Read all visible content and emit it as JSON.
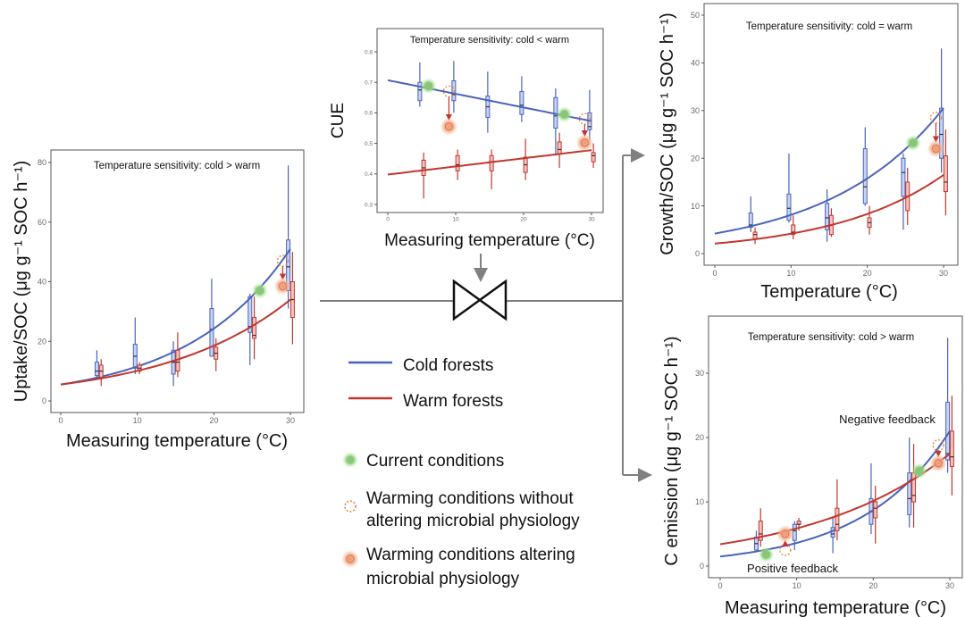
{
  "colors": {
    "cold": "#4a63b8",
    "warm": "#c0372f",
    "cold_box": "#c9d3f2",
    "warm_box": "#f2c4c0",
    "current": "#7cc96a",
    "warming": "#ee9a6e",
    "dashed": "#e0813e",
    "connector": "#808080"
  },
  "legend": {
    "cold": "Cold forests",
    "warm": "Warm forests",
    "current": "Current conditions",
    "no_physiology": [
      "Warming conditions without",
      "altering microbial physiology"
    ],
    "physiology": [
      "Warming conditions altering",
      "microbial physiology"
    ]
  },
  "chart_data": [
    {
      "id": "uptake",
      "type": "box+line",
      "title": "Temperature sensitivity: cold > warm",
      "xlabel": "Measuring temperature (°C)",
      "ylabel": "Uptake/SOC (μg g⁻¹ SOC h⁻¹)",
      "xticks": [
        0,
        10,
        20,
        30
      ],
      "yticks": [
        0,
        20,
        40,
        60,
        80
      ],
      "series": [
        {
          "name": "Cold forests",
          "fit": {
            "model": "exponential",
            "at_0": 5.5,
            "at_30": 51
          },
          "boxes": {
            "x": [
              5,
              10,
              15,
              20,
              25,
              30
            ],
            "stats": [
              [
                8,
                8.5,
                10,
                13,
                17
              ],
              [
                9,
                11,
                15,
                19,
                28
              ],
              [
                5,
                9,
                13,
                17,
                20
              ],
              [
                15,
                15,
                24,
                31,
                41
              ],
              [
                12,
                23,
                25,
                35,
                36
              ],
              [
                31,
                37,
                45,
                54,
                79
              ]
            ]
          }
        },
        {
          "name": "Warm forests",
          "fit": {
            "model": "exponential",
            "at_0": 5.5,
            "at_30": 34
          },
          "boxes": {
            "x": [
              5,
              10,
              15,
              20,
              25,
              30
            ],
            "stats": [
              [
                5,
                8,
                10,
                12,
                14
              ],
              [
                9,
                10,
                11,
                12,
                13
              ],
              [
                8,
                10,
                13,
                17,
                23
              ],
              [
                10,
                14,
                16,
                18,
                21
              ],
              [
                14,
                21,
                22,
                28,
                35
              ],
              [
                19,
                28,
                34,
                40,
                50
              ]
            ]
          }
        }
      ],
      "markers": {
        "current": [
          [
            26,
            37
          ]
        ],
        "no_physiology": [
          [
            29,
            47
          ]
        ],
        "physiology": [
          [
            29,
            38.5
          ]
        ]
      },
      "annotations": []
    },
    {
      "id": "cue",
      "type": "box+line",
      "title": "Temperature sensitivity: cold < warm",
      "xlabel": "Measuring temperature (°C)",
      "ylabel": "CUE",
      "xticks": [
        0,
        10,
        20,
        30
      ],
      "yticks": [
        0.3,
        0.4,
        0.5,
        0.6,
        0.7,
        0.8
      ],
      "series": [
        {
          "name": "Cold forests",
          "fit": {
            "model": "linear",
            "at_0": 0.707,
            "at_30": 0.573
          },
          "boxes": {
            "x": [
              5,
              10,
              15,
              20,
              25,
              30
            ],
            "stats": [
              [
                0.62,
                0.64,
                0.675,
                0.7,
                0.765
              ],
              [
                0.6,
                0.64,
                0.66,
                0.705,
                0.77
              ],
              [
                0.535,
                0.585,
                0.62,
                0.655,
                0.735
              ],
              [
                0.57,
                0.595,
                0.625,
                0.67,
                0.72
              ],
              [
                0.46,
                0.55,
                0.59,
                0.65,
                0.68
              ],
              [
                0.51,
                0.545,
                0.555,
                0.6,
                0.675
              ]
            ]
          }
        },
        {
          "name": "Warm forests",
          "fit": {
            "model": "linear",
            "at_0": 0.398,
            "at_30": 0.478
          },
          "boxes": {
            "x": [
              5,
              10,
              15,
              20,
              25,
              30
            ],
            "stats": [
              [
                0.32,
                0.395,
                0.42,
                0.445,
                0.47
              ],
              [
                0.38,
                0.41,
                0.43,
                0.46,
                0.48
              ],
              [
                0.35,
                0.41,
                0.44,
                0.46,
                0.48
              ],
              [
                0.38,
                0.405,
                0.43,
                0.455,
                0.515
              ],
              [
                0.42,
                0.465,
                0.48,
                0.505,
                0.535
              ],
              [
                0.42,
                0.44,
                0.46,
                0.47,
                0.5
              ]
            ]
          }
        }
      ],
      "markers": {
        "current": [
          [
            6,
            0.688
          ],
          [
            26,
            0.595
          ]
        ],
        "no_physiology": [
          [
            9,
            0.67
          ],
          [
            29,
            0.58
          ]
        ],
        "physiology": [
          [
            9,
            0.555
          ],
          [
            29,
            0.502
          ]
        ]
      },
      "annotations": []
    },
    {
      "id": "growth",
      "type": "box+line",
      "title": "Temperature sensitivity: cold = warm",
      "xlabel": "Temperature (°C)",
      "ylabel": "Growth/SOC (μg g⁻¹ SOC h⁻¹)",
      "xticks": [
        0,
        10,
        20,
        30
      ],
      "yticks": [
        0,
        10,
        20,
        30,
        40,
        50
      ],
      "series": [
        {
          "name": "Cold forests",
          "fit": {
            "model": "exponential",
            "at_0": 4.2,
            "at_30": 30.5
          },
          "boxes": {
            "x": [
              5,
              10,
              15,
              20,
              25,
              30
            ],
            "stats": [
              [
                4.5,
                5.5,
                6,
                8.5,
                12
              ],
              [
                6.5,
                7,
                9.5,
                12.5,
                21
              ],
              [
                2.5,
                5,
                7.5,
                10.5,
                13.5
              ],
              [
                10,
                10.5,
                14,
                22,
                26.5
              ],
              [
                5,
                12,
                17,
                20,
                21
              ],
              [
                17,
                20,
                25,
                30.5,
                43
              ]
            ]
          }
        },
        {
          "name": "Warm forests",
          "fit": {
            "model": "exponential",
            "at_0": 2.1,
            "at_30": 16.5
          },
          "boxes": {
            "x": [
              5,
              10,
              15,
              20,
              25,
              30
            ],
            "stats": [
              [
                2,
                3,
                4,
                4.5,
                5.5
              ],
              [
                3,
                4,
                4.5,
                6,
                8
              ],
              [
                3.5,
                4,
                6,
                8,
                9.5
              ],
              [
                4,
                5.5,
                6.5,
                7.5,
                10
              ],
              [
                6,
                9,
                12,
                15,
                18
              ],
              [
                8,
                13,
                15,
                20.5,
                26
              ]
            ]
          }
        }
      ],
      "markers": {
        "current": [
          [
            26,
            23.2
          ]
        ],
        "no_physiology": [
          [
            29,
            28.5
          ]
        ],
        "physiology": [
          [
            29,
            22
          ]
        ]
      },
      "annotations": []
    },
    {
      "id": "emission",
      "type": "box+line",
      "title": "Temperature sensitivity: cold > warm",
      "xlabel": "Measuring temperature (°C)",
      "ylabel": "C emission (μg g⁻¹ SOC h⁻¹)",
      "xticks": [
        0,
        10,
        20,
        30
      ],
      "yticks": [
        0,
        10,
        20,
        30
      ],
      "series": [
        {
          "name": "Cold forests",
          "fit": {
            "model": "exponential",
            "at_0": 1.5,
            "at_30": 21
          },
          "boxes": {
            "x": [
              5,
              10,
              15,
              20,
              25,
              30
            ],
            "stats": [
              [
                2.5,
                2.5,
                3.5,
                4.5,
                5.5
              ],
              [
                2.5,
                4,
                5.5,
                6.5,
                7
              ],
              [
                2,
                4.5,
                5,
                6,
                7.5
              ],
              [
                5,
                6.5,
                8.5,
                10.5,
                16
              ],
              [
                6,
                8,
                10.5,
                14.5,
                20
              ],
              [
                14.5,
                16.5,
                17.5,
                25.5,
                35.5
              ]
            ]
          }
        },
        {
          "name": "Warm forests",
          "fit": {
            "model": "exponential",
            "at_0": 3.4,
            "at_30": 17.5
          },
          "boxes": {
            "x": [
              5,
              10,
              15,
              20,
              25,
              30
            ],
            "stats": [
              [
                3,
                4,
                5,
                7,
                9
              ],
              [
                5.5,
                6.5,
                6.5,
                7,
                7.5
              ],
              [
                4,
                5.5,
                6.5,
                9,
                13.5
              ],
              [
                3.5,
                7.5,
                9,
                10,
                12.5
              ],
              [
                6,
                10,
                11,
                14.5,
                19
              ],
              [
                11,
                15.5,
                17,
                21,
                26.5
              ]
            ]
          }
        }
      ],
      "markers": {
        "current": [
          [
            6,
            1.8
          ],
          [
            26,
            14.8
          ]
        ],
        "no_physiology": [
          [
            8.5,
            2.5
          ],
          [
            28.5,
            18.8
          ]
        ],
        "physiology": [
          [
            8.5,
            5
          ],
          [
            28.5,
            16
          ]
        ]
      },
      "annotations": [
        "Negative feedback",
        "Positive feedback"
      ]
    }
  ]
}
